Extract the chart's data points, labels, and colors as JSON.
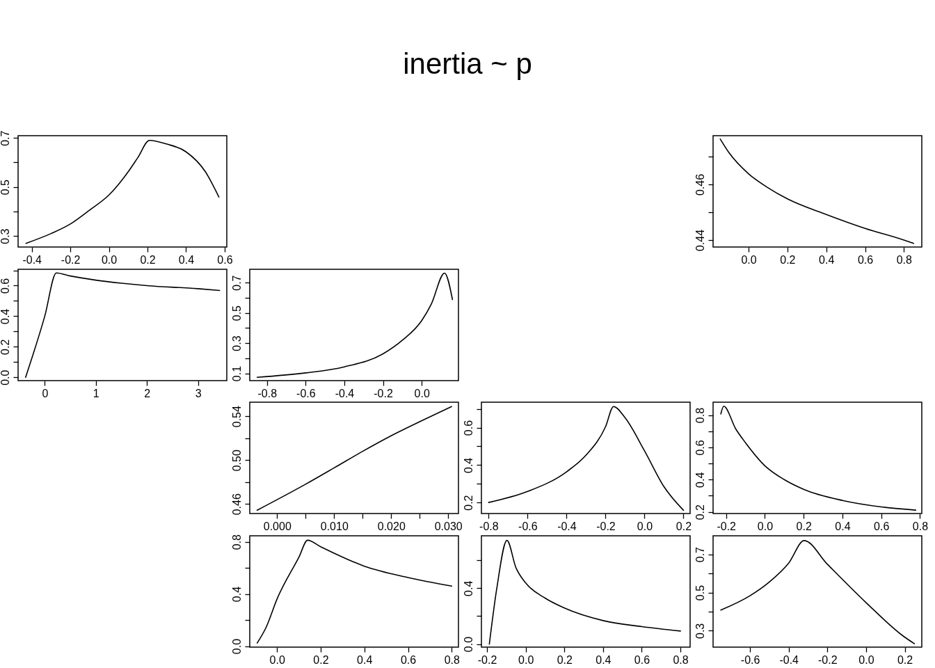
{
  "chart_data": [
    {
      "type": "other",
      "title": "inertia ~ p"
    },
    {
      "type": "line",
      "color": "#000000",
      "xlim": [
        -0.471,
        0.611
      ],
      "ylim": [
        0.255,
        0.709
      ],
      "xticks": [
        -0.4,
        -0.2,
        {
          "value": 0,
          "label": "0.0"
        },
        0.2,
        0.4,
        0.6
      ],
      "yticks": [
        0.3,
        {
          "value": 0.4,
          "label": null
        },
        0.5,
        {
          "value": 0.6,
          "label": null
        },
        0.7
      ],
      "x": [
        -0.43,
        -0.3,
        -0.2,
        -0.1,
        0.0,
        0.1,
        0.15,
        0.21,
        0.3,
        0.4,
        0.5,
        0.57
      ],
      "values": [
        0.27,
        0.31,
        0.349,
        0.406,
        0.467,
        0.562,
        0.62,
        0.69,
        0.675,
        0.643,
        0.562,
        0.459
      ]
    },
    {
      "type": "line",
      "color": "#000000",
      "xlim": [
        -0.183,
        0.892
      ],
      "ylim": [
        0.4375,
        0.4775
      ],
      "xticks": [
        {
          "value": 0,
          "label": "0.0"
        },
        0.2,
        0.4,
        0.6,
        0.8
      ],
      "yticks": [
        0.44,
        {
          "value": 0.45,
          "label": null
        },
        0.46,
        {
          "value": 0.47,
          "label": null
        }
      ],
      "x": [
        -0.146,
        -0.1,
        0.0,
        0.1,
        0.2,
        0.4,
        0.6,
        0.8,
        0.85
      ],
      "values": [
        0.4763,
        0.4713,
        0.4638,
        0.4588,
        0.4548,
        0.4492,
        0.4442,
        0.44,
        0.4388
      ]
    },
    {
      "type": "line",
      "color": "#000000",
      "xlim": [
        -0.522,
        3.562
      ],
      "ylim": [
        -0.022,
        0.707
      ],
      "xticks": [
        0,
        1,
        2,
        3
      ],
      "yticks": [
        {
          "value": 0,
          "label": "0.0"
        },
        {
          "value": 0.1,
          "label": null
        },
        0.2,
        {
          "value": 0.3,
          "label": null
        },
        0.4,
        {
          "value": 0.5,
          "label": null
        },
        0.6,
        {
          "value": 0.7,
          "label": null
        }
      ],
      "x": [
        -0.375,
        0.0,
        0.226,
        0.5,
        1.0,
        1.5,
        2.0,
        3.0,
        3.423
      ],
      "values": [
        0.0,
        0.4,
        0.683,
        0.663,
        0.636,
        0.616,
        0.6,
        0.58,
        0.568
      ]
    },
    {
      "type": "line",
      "color": "#000000",
      "xlim": [
        -0.889,
        0.19
      ],
      "ylim": [
        0.052,
        0.788
      ],
      "xticks": [
        -0.8,
        -0.6,
        -0.4,
        -0.2,
        {
          "value": 0,
          "label": "0.0"
        }
      ],
      "yticks": [
        0.1,
        {
          "value": 0.2,
          "label": null
        },
        0.3,
        {
          "value": 0.4,
          "label": null
        },
        0.5,
        {
          "value": 0.6,
          "label": null
        },
        0.7
      ],
      "x": [
        -0.851,
        -0.6,
        -0.4,
        -0.2,
        -0.1,
        0.0,
        0.05,
        0.118,
        0.159
      ],
      "values": [
        0.074,
        0.103,
        0.143,
        0.229,
        0.319,
        0.449,
        0.559,
        0.763,
        0.588
      ]
    },
    {
      "type": "line",
      "color": "#000000",
      "xlim": [
        -0.00479,
        0.0318
      ],
      "ylim": [
        0.4513,
        0.5528
      ],
      "xticks": [
        {
          "value": 0,
          "label": "0.000"
        },
        {
          "value": 0.005,
          "label": null
        },
        {
          "value": 0.01,
          "label": "0.010"
        },
        {
          "value": 0.015,
          "label": null
        },
        {
          "value": 0.02,
          "label": "0.020"
        },
        {
          "value": 0.025,
          "label": null
        },
        {
          "value": 0.03,
          "label": "0.030"
        }
      ],
      "yticks": [
        0.46,
        {
          "value": 0.48,
          "label": null
        },
        {
          "value": 0.5,
          "label": "0.50"
        },
        {
          "value": 0.52,
          "label": null
        },
        0.54
      ],
      "x": [
        -0.0035,
        0.005,
        0.01,
        0.015,
        0.02,
        0.025,
        0.0306
      ],
      "values": [
        0.4543,
        0.478,
        0.4929,
        0.508,
        0.5222,
        0.535,
        0.5488
      ]
    },
    {
      "type": "line",
      "color": "#000000",
      "xlim": [
        -0.837,
        0.234
      ],
      "ylim": [
        0.141,
        0.736
      ],
      "xticks": [
        -0.8,
        -0.6,
        -0.4,
        -0.2,
        {
          "value": 0,
          "label": "0.0"
        },
        0.2
      ],
      "yticks": [
        0.2,
        {
          "value": 0.3,
          "label": null
        },
        0.4,
        {
          "value": 0.5,
          "label": null
        },
        0.6,
        {
          "value": 0.7,
          "label": null
        }
      ],
      "x": [
        -0.8,
        -0.6,
        -0.4,
        -0.3,
        -0.2,
        -0.159,
        -0.1,
        0.0,
        0.1,
        0.2
      ],
      "values": [
        0.2,
        0.259,
        0.364,
        0.453,
        0.605,
        0.713,
        0.653,
        0.476,
        0.284,
        0.158
      ]
    },
    {
      "type": "line",
      "color": "#000000",
      "xlim": [
        -0.267,
        0.809
      ],
      "ylim": [
        0.19,
        0.88
      ],
      "xticks": [
        -0.2,
        {
          "value": 0,
          "label": "0.0"
        },
        0.2,
        0.4,
        0.6,
        0.8
      ],
      "yticks": [
        0.2,
        {
          "value": 0.3,
          "label": null
        },
        0.4,
        {
          "value": 0.5,
          "label": null
        },
        0.6,
        {
          "value": 0.7,
          "label": null
        },
        0.8
      ],
      "x": [
        -0.227,
        -0.212,
        -0.15,
        -0.1,
        0.0,
        0.1,
        0.2,
        0.4,
        0.6,
        0.778
      ],
      "values": [
        0.807,
        0.855,
        0.714,
        0.629,
        0.486,
        0.4,
        0.34,
        0.271,
        0.231,
        0.211
      ]
    },
    {
      "type": "line",
      "color": "#000000",
      "xlim": [
        -0.125,
        0.831
      ],
      "ylim": [
        -0.008,
        0.846
      ],
      "xticks": [
        {
          "value": 0,
          "label": "0.0"
        },
        0.2,
        0.4,
        0.6,
        0.8
      ],
      "yticks": [
        {
          "value": 0,
          "label": "0.0"
        },
        {
          "value": 0.2,
          "label": null
        },
        0.4,
        {
          "value": 0.6,
          "label": null
        },
        0.8
      ],
      "x": [
        -0.091,
        -0.05,
        0.0,
        0.1,
        0.14,
        0.2,
        0.4,
        0.6,
        0.8
      ],
      "values": [
        0.023,
        0.144,
        0.361,
        0.681,
        0.812,
        0.762,
        0.613,
        0.526,
        0.46
      ]
    },
    {
      "type": "line",
      "color": "#000000",
      "xlim": [
        -0.229,
        0.85
      ],
      "ylim": [
        -0.022,
        0.775
      ],
      "xticks": [
        -0.2,
        {
          "value": 0,
          "label": "0.0"
        },
        0.2,
        0.4,
        0.6,
        0.8
      ],
      "yticks": [
        {
          "value": 0,
          "label": "0.0"
        },
        {
          "value": 0.2,
          "label": null
        },
        0.4,
        {
          "value": 0.6,
          "label": null
        }
      ],
      "x": [
        -0.188,
        -0.15,
        -0.097,
        -0.05,
        0.0,
        0.1,
        0.2,
        0.4,
        0.6,
        0.8
      ],
      "values": [
        0.0,
        0.394,
        0.742,
        0.545,
        0.437,
        0.329,
        0.258,
        0.168,
        0.125,
        0.093
      ]
    },
    {
      "type": "line",
      "color": "#000000",
      "xlim": [
        -0.791,
        0.288
      ],
      "ylim": [
        0.214,
        0.797
      ],
      "xticks": [
        -0.6,
        -0.4,
        -0.2,
        {
          "value": 0,
          "label": "0.0"
        },
        0.2
      ],
      "yticks": [
        0.3,
        {
          "value": 0.4,
          "label": null
        },
        0.5,
        {
          "value": 0.6,
          "label": null
        },
        0.7
      ],
      "x": [
        -0.751,
        -0.6,
        -0.5,
        -0.4,
        -0.32,
        -0.2,
        0.0,
        0.2,
        0.25
      ],
      "values": [
        0.408,
        0.483,
        0.555,
        0.654,
        0.772,
        0.648,
        0.447,
        0.266,
        0.232
      ]
    }
  ]
}
